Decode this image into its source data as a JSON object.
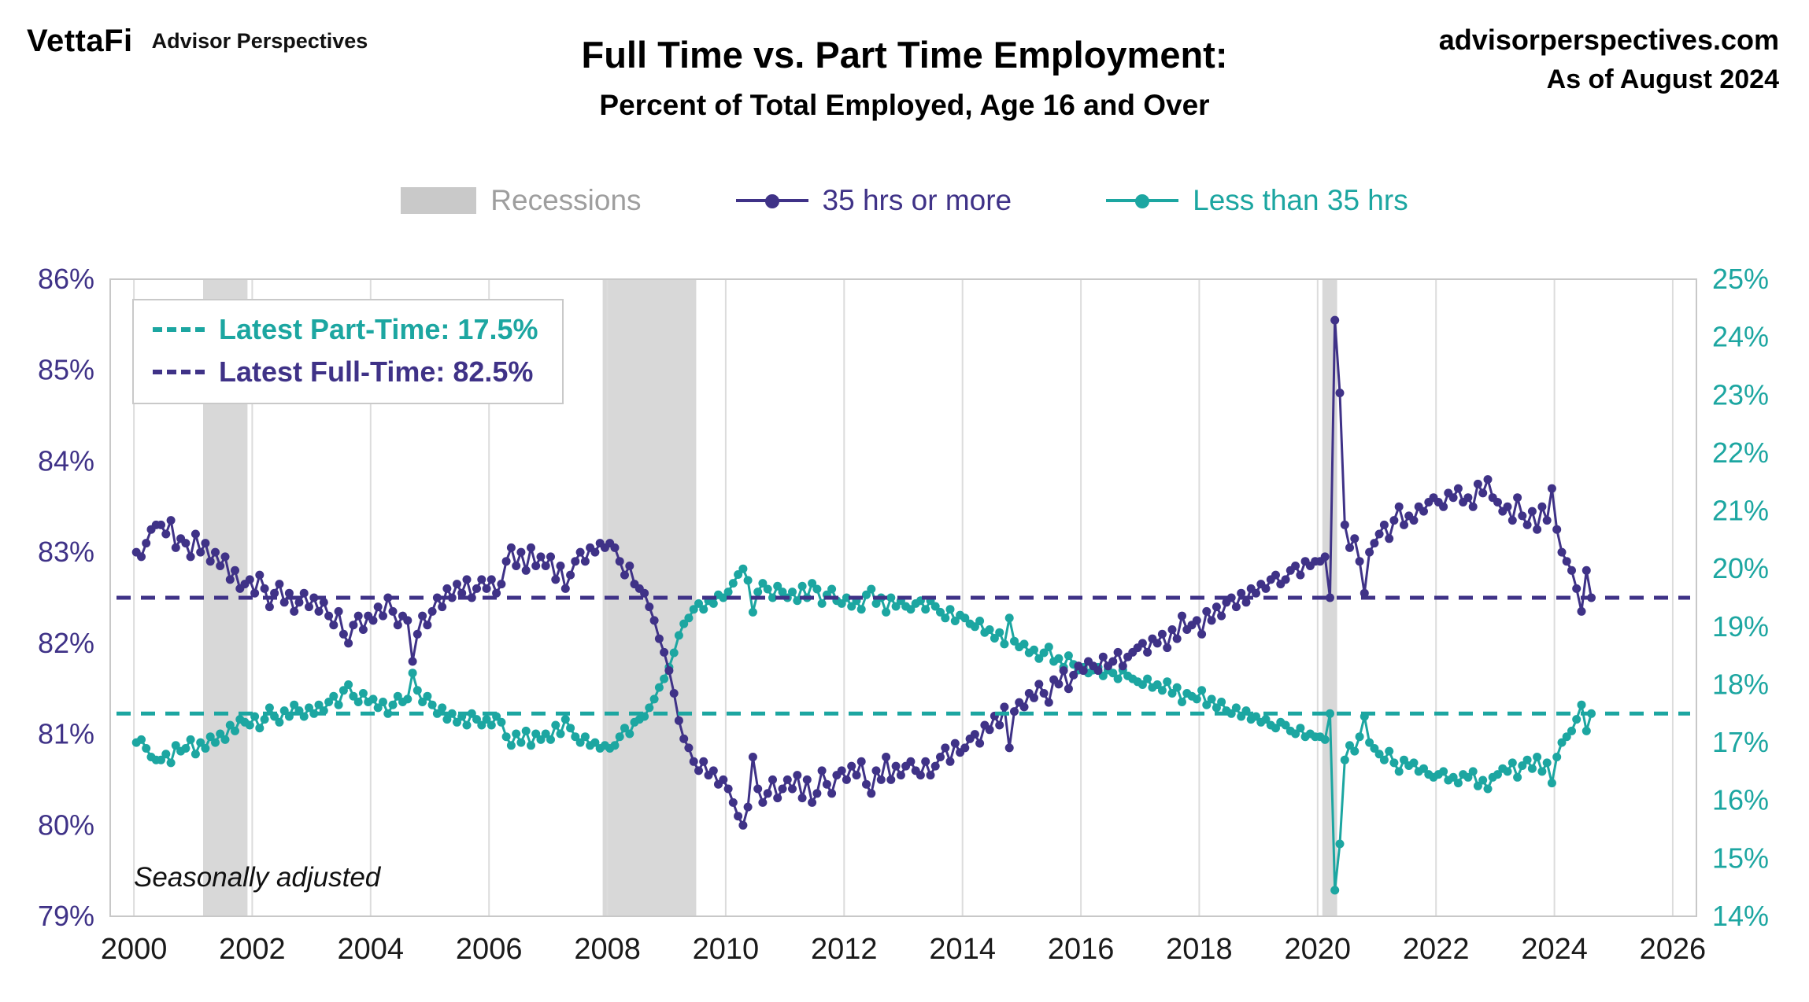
{
  "header": {
    "brand": "VettaFi",
    "brand_sub": "Advisor Perspectives",
    "site": "advisorperspectives.com",
    "as_of": "As of August 2024"
  },
  "legend": {
    "recessions": "Recessions",
    "full": "35 hrs or more",
    "part": "Less than 35 hrs"
  },
  "annotations": {
    "part": "Latest Part-Time: 17.5%",
    "full": "Latest Full-Time: 82.5%",
    "note": "Seasonally adjusted"
  },
  "colors": {
    "full_time": "#3F3287",
    "part_time": "#1CA6A1",
    "recession_band": "#D8D8D8",
    "recession_legend": "#C9C9C9",
    "recession_label": "#9E9E9E",
    "grid": "#DCDCDC",
    "frame": "#C8C8C8",
    "axis_text": "#1A1A1A"
  },
  "chart_data": {
    "type": "line",
    "title": "Full Time vs. Part Time Employment:",
    "subtitle": "Percent of Total Employed, Age 16 and Over",
    "xlabel": "",
    "note": "Seasonally adjusted",
    "frequency": "monthly",
    "start": "2000-01",
    "end": "2024-08",
    "legend_position": "top",
    "grid": "vertical",
    "x": {
      "start_year": 2000,
      "domain": [
        1999.6,
        2026.4
      ],
      "ticks": [
        2000,
        2002,
        2004,
        2006,
        2008,
        2010,
        2012,
        2014,
        2016,
        2018,
        2020,
        2022,
        2024,
        2026
      ]
    },
    "left_axis": {
      "min": 79,
      "max": 86,
      "tick_step": 1,
      "suffix": "%",
      "color": "#3F3287"
    },
    "right_axis": {
      "min": 14,
      "max": 25,
      "tick_step": 1,
      "suffix": "%",
      "color": "#1CA6A1"
    },
    "reference_lines": [
      {
        "axis": "left",
        "value": 82.5,
        "color": "#3F3287",
        "label": "Latest Full-Time: 82.5%"
      },
      {
        "axis": "right",
        "value": 17.5,
        "color": "#1CA6A1",
        "label": "Latest Part-Time: 17.5%"
      }
    ],
    "recessions": {
      "color": "#D8D8D8",
      "ranges": [
        [
          2001.17,
          2001.92
        ],
        [
          2007.92,
          2009.5
        ],
        [
          2020.08,
          2020.33
        ]
      ]
    },
    "series": [
      {
        "name": "35 hrs or more",
        "axis": "left",
        "color": "#3F3287",
        "latest": 82.5,
        "values": [
          83.0,
          82.95,
          83.1,
          83.25,
          83.3,
          83.3,
          83.2,
          83.35,
          83.05,
          83.15,
          83.1,
          82.95,
          83.2,
          83.0,
          83.1,
          82.9,
          83.0,
          82.85,
          82.95,
          82.7,
          82.8,
          82.6,
          82.65,
          82.7,
          82.55,
          82.75,
          82.6,
          82.4,
          82.55,
          82.65,
          82.45,
          82.55,
          82.35,
          82.45,
          82.55,
          82.4,
          82.5,
          82.35,
          82.45,
          82.3,
          82.2,
          82.35,
          82.1,
          82.0,
          82.2,
          82.3,
          82.15,
          82.3,
          82.25,
          82.4,
          82.3,
          82.5,
          82.35,
          82.2,
          82.3,
          82.25,
          81.8,
          82.1,
          82.3,
          82.2,
          82.35,
          82.5,
          82.4,
          82.6,
          82.5,
          82.65,
          82.55,
          82.7,
          82.5,
          82.6,
          82.7,
          82.6,
          82.7,
          82.55,
          82.65,
          82.9,
          83.05,
          82.85,
          83.0,
          82.8,
          83.05,
          82.85,
          82.95,
          82.85,
          82.95,
          82.7,
          82.85,
          82.6,
          82.75,
          82.9,
          83.0,
          82.9,
          83.05,
          83.0,
          83.1,
          83.05,
          83.1,
          83.05,
          82.9,
          82.75,
          82.85,
          82.65,
          82.6,
          82.55,
          82.4,
          82.25,
          82.05,
          81.9,
          81.7,
          81.45,
          81.15,
          80.95,
          80.85,
          80.7,
          80.6,
          80.7,
          80.55,
          80.6,
          80.45,
          80.5,
          80.4,
          80.25,
          80.1,
          80.0,
          80.2,
          80.75,
          80.4,
          80.25,
          80.35,
          80.5,
          80.3,
          80.4,
          80.5,
          80.4,
          80.55,
          80.3,
          80.5,
          80.25,
          80.35,
          80.6,
          80.45,
          80.35,
          80.55,
          80.6,
          80.5,
          80.65,
          80.55,
          80.7,
          80.45,
          80.35,
          80.6,
          80.5,
          80.75,
          80.5,
          80.65,
          80.55,
          80.65,
          80.7,
          80.6,
          80.55,
          80.7,
          80.55,
          80.65,
          80.75,
          80.85,
          80.7,
          80.9,
          80.8,
          80.85,
          80.95,
          81.0,
          80.9,
          81.1,
          81.05,
          81.2,
          81.1,
          81.3,
          80.85,
          81.25,
          81.35,
          81.3,
          81.45,
          81.4,
          81.55,
          81.45,
          81.35,
          81.6,
          81.55,
          81.7,
          81.5,
          81.65,
          81.75,
          81.7,
          81.8,
          81.75,
          81.7,
          81.85,
          81.75,
          81.8,
          81.9,
          81.75,
          81.85,
          81.9,
          81.95,
          82.0,
          81.9,
          82.05,
          82.0,
          82.1,
          81.95,
          82.15,
          82.05,
          82.3,
          82.15,
          82.2,
          82.25,
          82.1,
          82.35,
          82.25,
          82.4,
          82.3,
          82.45,
          82.5,
          82.4,
          82.55,
          82.45,
          82.6,
          82.55,
          82.65,
          82.6,
          82.7,
          82.75,
          82.65,
          82.7,
          82.8,
          82.85,
          82.75,
          82.9,
          82.85,
          82.9,
          82.9,
          82.95,
          82.5,
          85.55,
          84.75,
          83.3,
          83.05,
          83.15,
          82.9,
          82.55,
          83.0,
          83.1,
          83.2,
          83.3,
          83.15,
          83.35,
          83.5,
          83.3,
          83.4,
          83.35,
          83.5,
          83.45,
          83.55,
          83.6,
          83.55,
          83.5,
          83.65,
          83.6,
          83.7,
          83.55,
          83.6,
          83.5,
          83.75,
          83.65,
          83.8,
          83.6,
          83.55,
          83.45,
          83.5,
          83.35,
          83.6,
          83.4,
          83.3,
          83.45,
          83.25,
          83.5,
          83.35,
          83.7,
          83.25,
          83.0,
          82.9,
          82.8,
          82.6,
          82.35,
          82.8,
          82.5
        ]
      },
      {
        "name": "Less than 35 hrs",
        "axis": "right",
        "color": "#1CA6A1",
        "latest": 17.5,
        "values": [
          17.0,
          17.05,
          16.9,
          16.75,
          16.7,
          16.7,
          16.8,
          16.65,
          16.95,
          16.85,
          16.9,
          17.05,
          16.8,
          17.0,
          16.9,
          17.1,
          17.0,
          17.15,
          17.05,
          17.3,
          17.2,
          17.4,
          17.35,
          17.3,
          17.45,
          17.25,
          17.4,
          17.6,
          17.45,
          17.35,
          17.55,
          17.45,
          17.65,
          17.55,
          17.45,
          17.6,
          17.5,
          17.65,
          17.55,
          17.7,
          17.8,
          17.65,
          17.9,
          18.0,
          17.8,
          17.7,
          17.85,
          17.7,
          17.75,
          17.6,
          17.7,
          17.5,
          17.65,
          17.8,
          17.7,
          17.75,
          18.2,
          17.9,
          17.7,
          17.8,
          17.65,
          17.5,
          17.6,
          17.4,
          17.5,
          17.35,
          17.45,
          17.3,
          17.5,
          17.4,
          17.3,
          17.4,
          17.3,
          17.45,
          17.35,
          17.1,
          16.95,
          17.15,
          17.0,
          17.2,
          16.95,
          17.15,
          17.05,
          17.15,
          17.05,
          17.3,
          17.15,
          17.4,
          17.25,
          17.1,
          17.0,
          17.1,
          16.95,
          17.0,
          16.9,
          16.95,
          16.9,
          16.95,
          17.1,
          17.25,
          17.15,
          17.35,
          17.4,
          17.45,
          17.6,
          17.75,
          17.95,
          18.1,
          18.3,
          18.55,
          18.85,
          19.05,
          19.15,
          19.3,
          19.4,
          19.3,
          19.45,
          19.4,
          19.55,
          19.5,
          19.6,
          19.75,
          19.9,
          20.0,
          19.8,
          19.25,
          19.6,
          19.75,
          19.65,
          19.5,
          19.7,
          19.6,
          19.5,
          19.6,
          19.45,
          19.7,
          19.5,
          19.75,
          19.65,
          19.4,
          19.55,
          19.65,
          19.45,
          19.4,
          19.5,
          19.35,
          19.45,
          19.3,
          19.55,
          19.65,
          19.4,
          19.5,
          19.25,
          19.5,
          19.35,
          19.45,
          19.35,
          19.3,
          19.4,
          19.45,
          19.3,
          19.45,
          19.35,
          19.25,
          19.15,
          19.3,
          19.1,
          19.2,
          19.15,
          19.05,
          19.0,
          19.1,
          18.9,
          18.95,
          18.8,
          18.9,
          18.7,
          19.15,
          18.75,
          18.65,
          18.7,
          18.55,
          18.6,
          18.45,
          18.55,
          18.65,
          18.4,
          18.45,
          18.3,
          18.5,
          18.35,
          18.25,
          18.3,
          18.2,
          18.25,
          18.3,
          18.15,
          18.25,
          18.2,
          18.1,
          18.25,
          18.15,
          18.1,
          18.05,
          18.0,
          18.1,
          17.95,
          18.0,
          17.9,
          18.05,
          17.85,
          17.95,
          17.7,
          17.85,
          17.8,
          17.75,
          17.9,
          17.65,
          17.75,
          17.6,
          17.7,
          17.55,
          17.5,
          17.6,
          17.45,
          17.55,
          17.4,
          17.45,
          17.35,
          17.4,
          17.3,
          17.25,
          17.35,
          17.3,
          17.2,
          17.15,
          17.25,
          17.1,
          17.15,
          17.1,
          17.1,
          17.05,
          17.5,
          14.45,
          15.25,
          16.7,
          16.95,
          16.85,
          17.1,
          17.45,
          17.0,
          16.9,
          16.8,
          16.7,
          16.85,
          16.65,
          16.5,
          16.7,
          16.6,
          16.65,
          16.5,
          16.55,
          16.45,
          16.4,
          16.45,
          16.5,
          16.35,
          16.4,
          16.3,
          16.45,
          16.4,
          16.5,
          16.25,
          16.35,
          16.2,
          16.4,
          16.45,
          16.55,
          16.5,
          16.65,
          16.4,
          16.6,
          16.7,
          16.55,
          16.75,
          16.5,
          16.65,
          16.3,
          16.75,
          17.0,
          17.1,
          17.2,
          17.4,
          17.65,
          17.2,
          17.5
        ]
      }
    ]
  }
}
